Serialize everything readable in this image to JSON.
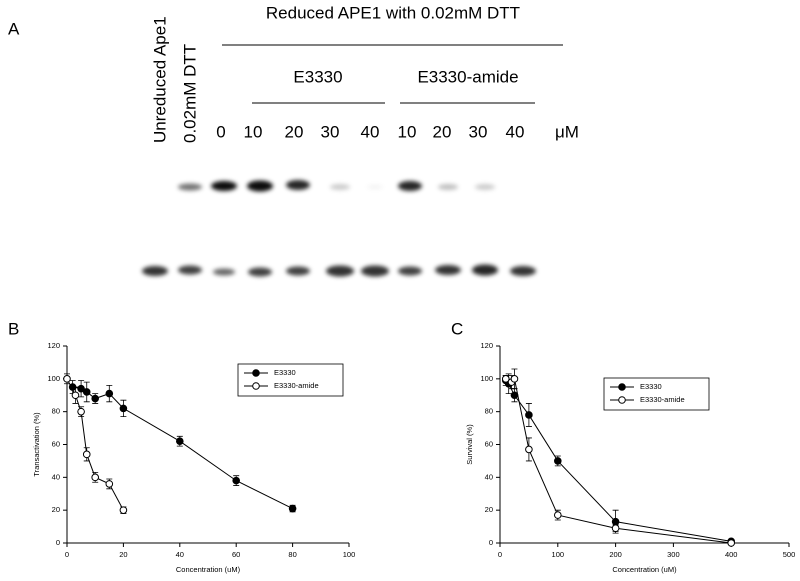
{
  "panel_a": {
    "label": "A",
    "title": "Reduced APE1 with 0.02mM DTT",
    "lane_labels": [
      "Unreduced Ape1",
      "0.02mM DTT"
    ],
    "zero_lane": 0,
    "groups": [
      {
        "name": "E3330",
        "concentrations": [
          10,
          20,
          30,
          40
        ]
      },
      {
        "name": "E3330-amide",
        "concentrations": [
          10,
          20,
          30,
          40
        ]
      }
    ],
    "unit": "μM"
  },
  "chart_data": [
    {
      "type": "line",
      "panel_label": "B",
      "xlabel": "Concentration (uM)",
      "ylabel": "Transactivation (%)",
      "xlim": [
        0,
        100
      ],
      "xticks": [
        0,
        20,
        40,
        60,
        80,
        100
      ],
      "ylim": [
        0,
        120
      ],
      "yticks": [
        0,
        20,
        40,
        60,
        80,
        100,
        120
      ],
      "legend": "upper right",
      "series": [
        {
          "name": "E3330",
          "color": "#000000",
          "marker": "filled",
          "x": [
            2,
            5,
            7,
            10,
            15,
            20,
            40,
            60,
            80
          ],
          "values": [
            95,
            94,
            92,
            88,
            91,
            82,
            62,
            38,
            21
          ],
          "errors": [
            4,
            5,
            6,
            3,
            5,
            5,
            3,
            3,
            2
          ]
        },
        {
          "name": "E3330-amide",
          "color": "#000000",
          "marker": "open",
          "x": [
            0,
            3,
            5,
            7,
            10,
            15,
            20
          ],
          "values": [
            100,
            90,
            80,
            54,
            40,
            36,
            20
          ],
          "errors": [
            3,
            5,
            3,
            4,
            3,
            3,
            2
          ]
        }
      ]
    },
    {
      "type": "line",
      "panel_label": "C",
      "xlabel": "Concentration (uM)",
      "ylabel": "Survival (%)",
      "xlim": [
        0,
        500
      ],
      "xticks": [
        0,
        100,
        200,
        300,
        400,
        500
      ],
      "ylim": [
        0,
        120
      ],
      "yticks": [
        0,
        20,
        40,
        60,
        80,
        100,
        120
      ],
      "legend": "upper center",
      "series": [
        {
          "name": "E3330",
          "color": "#000000",
          "marker": "filled",
          "x": [
            10,
            15,
            25,
            50,
            100,
            200,
            400
          ],
          "values": [
            99,
            97,
            90,
            78,
            50,
            13,
            1
          ],
          "errors": [
            3,
            6,
            4,
            7,
            3,
            7,
            1
          ]
        },
        {
          "name": "E3330-amide",
          "color": "#000000",
          "marker": "open",
          "x": [
            10,
            20,
            25,
            50,
            100,
            200,
            400
          ],
          "values": [
            100,
            98,
            100,
            57,
            17,
            9,
            0
          ],
          "errors": [
            2,
            4,
            6,
            7,
            3,
            2,
            1
          ]
        }
      ]
    }
  ]
}
